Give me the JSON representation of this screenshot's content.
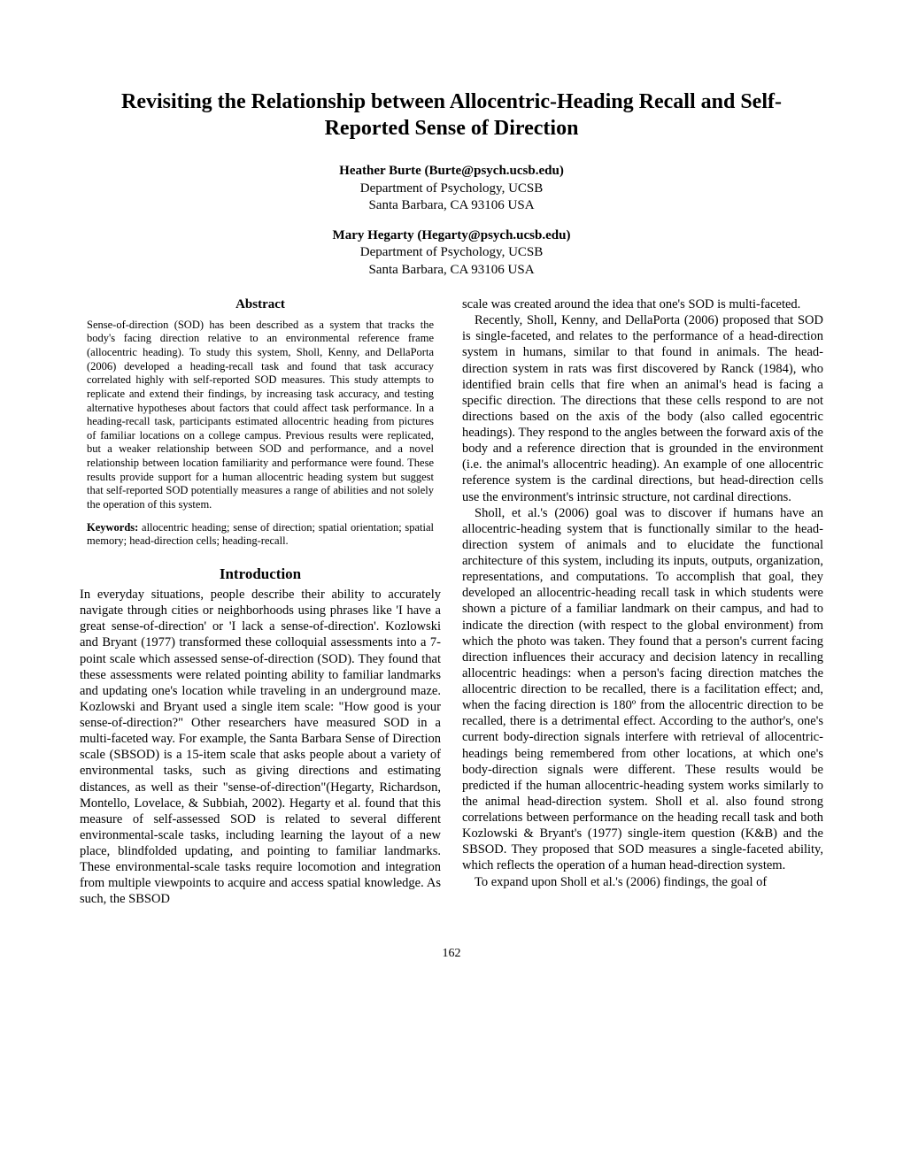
{
  "title": "Revisiting the Relationship between Allocentric-Heading Recall and Self-Reported Sense of Direction",
  "authors": [
    {
      "name": "Heather Burte (Burte@psych.ucsb.edu)",
      "dept": "Department of Psychology, UCSB",
      "addr": "Santa Barbara, CA 93106 USA"
    },
    {
      "name": "Mary Hegarty (Hegarty@psych.ucsb.edu)",
      "dept": "Department of Psychology, UCSB",
      "addr": "Santa Barbara, CA 93106 USA"
    }
  ],
  "abstract_heading": "Abstract",
  "abstract": "Sense-of-direction (SOD) has been described as a system that tracks the body's facing direction relative to an environmental reference frame (allocentric heading). To study this system, Sholl, Kenny, and DellaPorta (2006) developed a heading-recall task and found that task accuracy correlated highly with self-reported SOD measures. This study attempts to replicate and extend their findings, by increasing task accuracy, and testing alternative hypotheses about factors that could affect task performance. In a heading-recall task, participants estimated allocentric heading from pictures of familiar locations on a college campus. Previous results were replicated, but a weaker relationship between SOD and performance, and a novel relationship between location familiarity and performance were found. These results provide support for a human allocentric heading system but suggest that self-reported SOD potentially measures a range of abilities and not solely the operation of this system.",
  "keywords_label": "Keywords:",
  "keywords": " allocentric heading; sense of direction; spatial orientation; spatial memory; head-direction cells; heading-recall.",
  "intro_heading": "Introduction",
  "intro_p1": "In everyday situations, people describe their ability to accurately navigate through cities or neighborhoods using phrases like 'I have a great sense-of-direction' or 'I lack a sense-of-direction'. Kozlowski and Bryant (1977) transformed these colloquial assessments into a 7-point scale which assessed sense-of-direction (SOD). They found that these assessments were related pointing ability to familiar landmarks and updating one's location while traveling in an underground maze. Kozlowski and Bryant used a single item scale: \"How good is your sense-of-direction?\" Other researchers have measured SOD in a multi-faceted way. For example, the Santa Barbara Sense of Direction scale (SBSOD) is a 15-item scale that asks people about a variety of environmental tasks, such as giving directions and estimating distances, as well as their \"sense-of-direction\"(Hegarty, Richardson, Montello, Lovelace, & Subbiah, 2002). Hegarty et al. found that this measure of self-assessed SOD is related to several different environmental-scale tasks, including learning the layout of a new place, blindfolded updating, and pointing to familiar landmarks. These environmental-scale tasks require locomotion and integration from multiple viewpoints to acquire and access spatial knowledge. As such, the SBSOD",
  "col2_p1": "scale was created around the idea that one's SOD is multi-faceted.",
  "col2_p2": "Recently, Sholl, Kenny, and DellaPorta (2006) proposed that SOD is single-faceted, and relates to the performance of a head-direction system in humans, similar to that found in animals. The head-direction system in rats was first discovered by Ranck (1984), who identified brain cells that fire when an animal's head is facing a specific direction. The directions that these cells respond to are not directions based on the axis of the body (also called egocentric headings). They respond to the angles between the forward axis of the body and a reference direction that is grounded in the environment (i.e. the animal's allocentric heading). An example of one allocentric reference system is the cardinal directions, but head-direction cells use the environment's intrinsic structure, not cardinal directions.",
  "col2_p3": "Sholl, et al.'s (2006) goal was to discover if humans have an allocentric-heading system that is functionally similar to the head-direction system of animals and to elucidate the functional architecture of this system, including its inputs, outputs, organization, representations, and computations. To accomplish that goal, they developed an allocentric-heading recall task in which students were shown a picture of a familiar landmark on their campus, and had to indicate the direction (with respect to the global environment) from which the photo was taken. They found that a person's current facing direction influences their accuracy and decision latency in recalling allocentric headings: when a person's facing direction matches the allocentric direction to be recalled, there is a facilitation effect; and, when the facing direction is 180º from the allocentric direction to be recalled, there is a detrimental effect. According to the author's, one's current body-direction signals interfere with retrieval of allocentric-headings being remembered from other locations, at which one's body-direction signals were different. These results would be predicted if the human allocentric-heading system works similarly to the animal head-direction system. Sholl et al. also found strong correlations between performance on the heading recall task and both Kozlowski & Bryant's (1977) single-item question (K&B) and the SBSOD. They proposed that SOD measures a single-faceted ability, which reflects the operation of a human head-direction system.",
  "col2_p4": "To expand upon Sholl et al.'s (2006) findings, the goal of",
  "page_number": "162"
}
